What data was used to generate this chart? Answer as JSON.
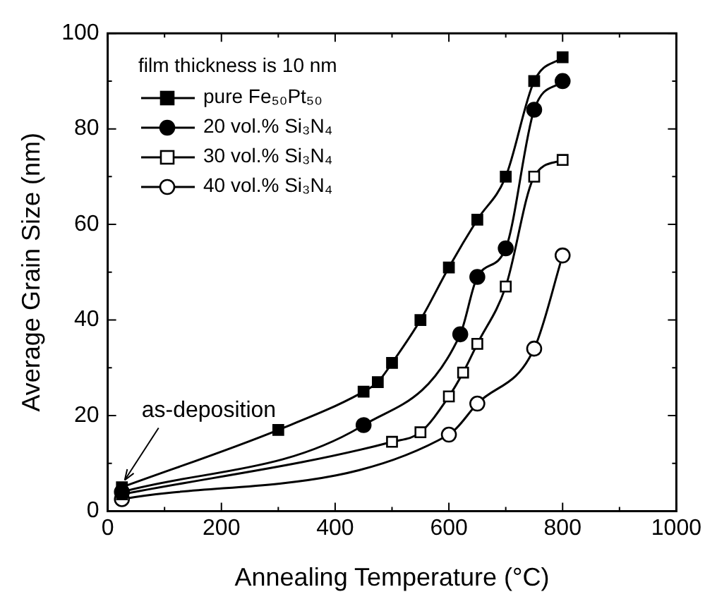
{
  "chart_data": {
    "type": "line",
    "xlabel": "Annealing Temperature (°C)",
    "ylabel": "Average Grain Size (nm)",
    "legend_title": "film thickness is 10 nm",
    "legend": "top left",
    "grid": false,
    "line_style": "solid",
    "xlim": [
      0,
      1000
    ],
    "xticks": [
      0,
      200,
      400,
      600,
      800,
      1000
    ],
    "ylim": [
      0,
      100
    ],
    "yticks": [
      0,
      20,
      40,
      60,
      80,
      100
    ],
    "annotations": [
      {
        "text": "as-deposition",
        "x": 25,
        "y": 5
      }
    ],
    "series": [
      {
        "name": "pure Fe₅₀Pt₅₀",
        "color": "#000000",
        "marker": "square",
        "x": [
          25,
          300,
          450,
          475,
          500,
          550,
          600,
          650,
          700,
          750,
          800
        ],
        "values": [
          5,
          17,
          25,
          27,
          31,
          40,
          51,
          61,
          70,
          90,
          95
        ]
      },
      {
        "name": "20 vol.% Si₃N₄",
        "color": "#000000",
        "marker": "circle",
        "x": [
          25,
          450,
          620,
          650,
          700,
          750,
          800
        ],
        "values": [
          4,
          18,
          37,
          49,
          55,
          84,
          90
        ]
      },
      {
        "name": "30 vol.% Si₃N₄",
        "color": "#000000",
        "marker": "square",
        "x": [
          25,
          500,
          550,
          600,
          625,
          650,
          700,
          750,
          800
        ],
        "values": [
          3.5,
          14.5,
          16.5,
          24,
          29,
          35,
          47,
          70,
          73.5
        ]
      },
      {
        "name": "40 vol.% Si₃N₄",
        "color": "#000000",
        "marker": "circle",
        "x": [
          25,
          600,
          650,
          750,
          800
        ],
        "values": [
          2.5,
          16,
          22.5,
          34,
          53.5
        ]
      }
    ]
  }
}
